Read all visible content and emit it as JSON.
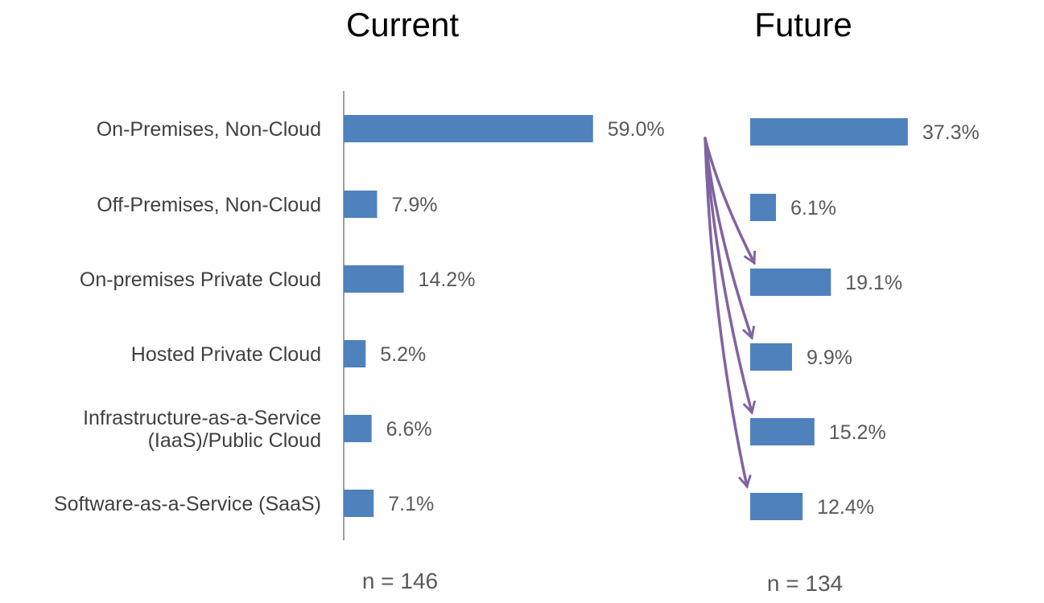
{
  "chart_data": [
    {
      "type": "bar",
      "orientation": "horizontal",
      "title": "Current",
      "categories": [
        [
          "On-Premises, Non-Cloud"
        ],
        [
          "Off-Premises, Non-Cloud"
        ],
        [
          "On-premises Private Cloud"
        ],
        [
          "Hosted Private Cloud"
        ],
        [
          "Infrastructure-as-a-Service",
          "(IaaS)/Public Cloud"
        ],
        [
          "Software-as-a-Service (SaaS)"
        ]
      ],
      "values": [
        59.0,
        7.9,
        14.2,
        5.2,
        6.6,
        7.1
      ],
      "value_labels": [
        "59.0%",
        "7.9%",
        "14.2%",
        "5.2%",
        "6.6%",
        "7.1%"
      ],
      "footnote": "n = 146",
      "bar_color": "#4f81bd",
      "grid": false,
      "legend": "none"
    },
    {
      "type": "bar",
      "orientation": "horizontal",
      "title": "Future",
      "categories": [
        [
          "On-Premises, Non-Cloud"
        ],
        [
          "Off-Premises, Non-Cloud"
        ],
        [
          "On-premises Private Cloud"
        ],
        [
          "Hosted Private Cloud"
        ],
        [
          "Infrastructure-as-a-Service",
          "(IaaS)/Public Cloud"
        ],
        [
          "Software-as-a-Service (SaaS)"
        ]
      ],
      "values": [
        37.3,
        6.1,
        19.1,
        9.9,
        15.2,
        12.4
      ],
      "value_labels": [
        "37.3%",
        "6.1%",
        "19.1%",
        "9.9%",
        "15.2%",
        "12.4%"
      ],
      "footnote": "n = 134",
      "bar_color": "#4f81bd",
      "grid": false,
      "legend": "none"
    }
  ],
  "annotations": {
    "arrows_from": 0,
    "arrows_to": [
      2,
      3,
      4,
      5
    ],
    "arrow_color": "#8064a2"
  },
  "colors": {
    "category_label": "#404040",
    "value_label": "#595959",
    "title": "#000000",
    "axis_line": "#808080"
  }
}
